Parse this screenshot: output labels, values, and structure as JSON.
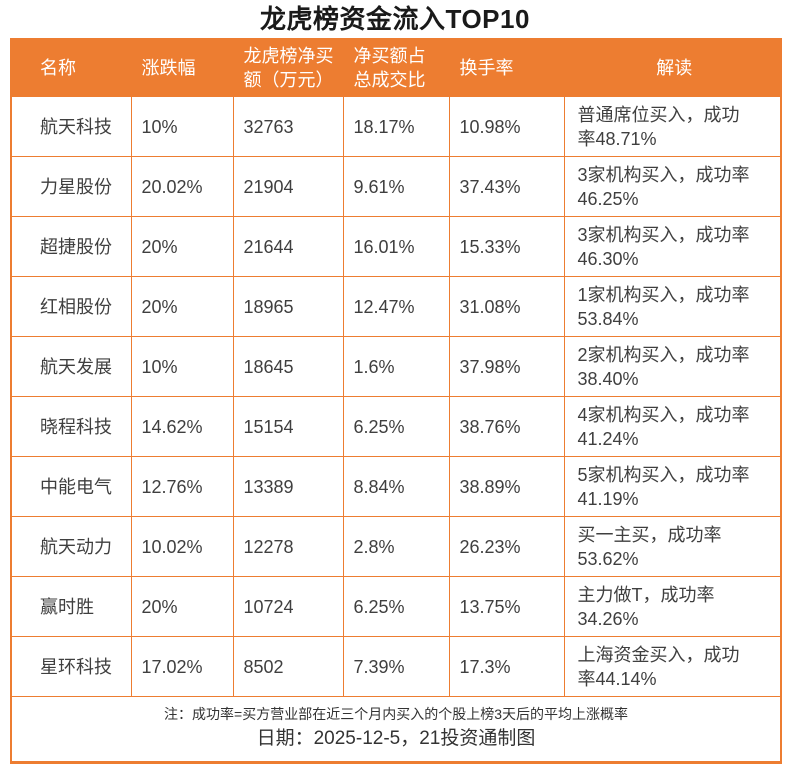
{
  "colors": {
    "accent_orange": "#ED7D31",
    "header_text": "#FFFFFF",
    "body_text": "#3F3F3F",
    "title_text": "#1A1A1A"
  },
  "chart_data": {
    "type": "table",
    "title": "龙虎榜资金流入TOP10",
    "columns": [
      "名称",
      "涨跌幅",
      "龙虎榜净买额（万元）",
      "净买额占总成交比",
      "换手率",
      "解读"
    ],
    "rows": [
      [
        "航天科技",
        "10%",
        "32763",
        "18.17%",
        "10.98%",
        "普通席位买入，成功率48.71%"
      ],
      [
        "力星股份",
        "20.02%",
        "21904",
        "9.61%",
        "37.43%",
        "3家机构买入，成功率46.25%"
      ],
      [
        "超捷股份",
        "20%",
        "21644",
        "16.01%",
        "15.33%",
        "3家机构买入，成功率46.30%"
      ],
      [
        "红相股份",
        "20%",
        "18965",
        "12.47%",
        "31.08%",
        "1家机构买入，成功率53.84%"
      ],
      [
        "航天发展",
        "10%",
        "18645",
        "1.6%",
        "37.98%",
        "2家机构买入，成功率38.40%"
      ],
      [
        "晓程科技",
        "14.62%",
        "15154",
        "6.25%",
        "38.76%",
        "4家机构买入，成功率41.24%"
      ],
      [
        "中能电气",
        "12.76%",
        "13389",
        "8.84%",
        "38.89%",
        "5家机构买入，成功率41.19%"
      ],
      [
        "航天动力",
        "10.02%",
        "12278",
        "2.8%",
        "26.23%",
        "买一主买，成功率53.62%"
      ],
      [
        "赢时胜",
        "20%",
        "10724",
        "6.25%",
        "13.75%",
        "主力做T，成功率34.26%"
      ],
      [
        "星环科技",
        "17.02%",
        "8502",
        "7.39%",
        "17.3%",
        "上海资金买入，成功率44.14%"
      ]
    ]
  },
  "footer": {
    "note": "注：成功率=买方营业部在近三个月内买入的个股上榜3天后的平均上涨概率",
    "date_line": "日期：2025-12-5，21投资通制图"
  }
}
